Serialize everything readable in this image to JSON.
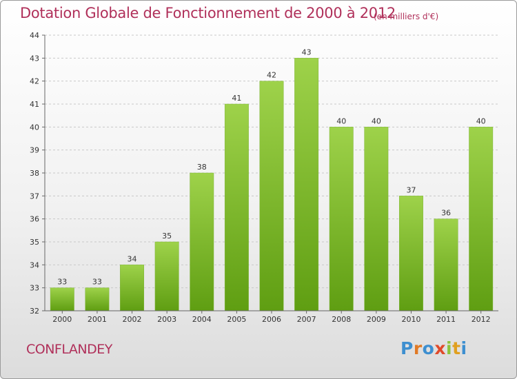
{
  "header": {
    "title": "Dotation Globale de Fonctionnement de 2000 à 2012",
    "unit_note": "(en milliers d'€)"
  },
  "footer": {
    "commune": "CONFLANDEY",
    "brand_letters": [
      "P",
      "r",
      "o",
      "x",
      "i",
      "t",
      "i"
    ],
    "brand_colors": [
      "#3d8fd0",
      "#e07a26",
      "#3d8fd0",
      "#e04a2a",
      "#8cc43c",
      "#e0a020",
      "#3d8fd0"
    ]
  },
  "colors": {
    "bar_top": "#9ed24a",
    "bar_bottom": "#5f9e12",
    "grid": "#c8c8c8",
    "text_accent": "#b0305a"
  },
  "chart_data": {
    "type": "bar",
    "categories": [
      "2000",
      "2001",
      "2002",
      "2003",
      "2004",
      "2005",
      "2006",
      "2007",
      "2008",
      "2009",
      "2010",
      "2011",
      "2012"
    ],
    "values": [
      33,
      33,
      34,
      35,
      38,
      41,
      42,
      43,
      40,
      40,
      37,
      36,
      40
    ],
    "title": "Dotation Globale de Fonctionnement de 2000 à 2012",
    "subtitle": "(en milliers d'€)",
    "xlabel": "",
    "ylabel": "",
    "ylim": [
      32,
      44
    ],
    "yticks": [
      32,
      33,
      34,
      35,
      36,
      37,
      38,
      39,
      40,
      41,
      42,
      43,
      44
    ],
    "grid": true,
    "data_labels": true
  }
}
